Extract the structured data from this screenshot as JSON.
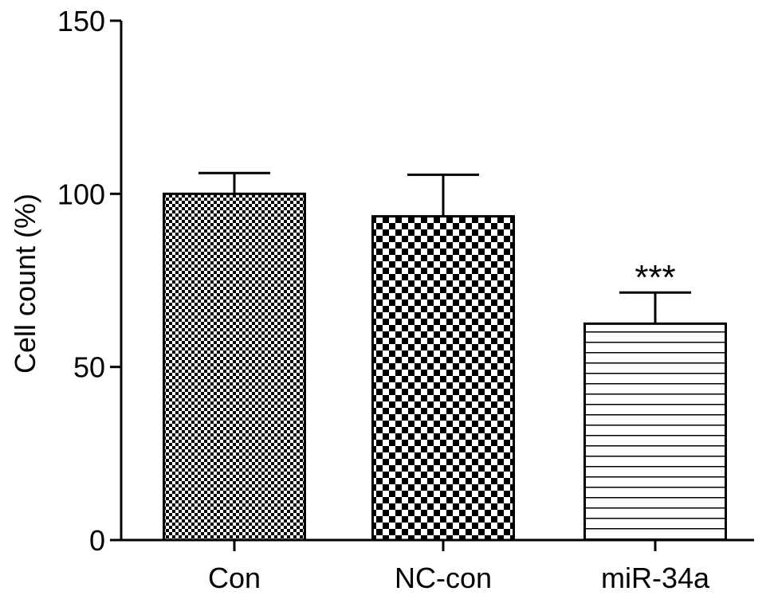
{
  "chart_data": {
    "type": "bar",
    "categories": [
      "Con",
      "NC-con",
      "miR-34a"
    ],
    "values": [
      100,
      93.5,
      62.5
    ],
    "errors": [
      6,
      12,
      9
    ],
    "patterns": [
      "fine-checker",
      "coarse-checker",
      "horizontal-lines"
    ],
    "annotations": [
      "",
      "",
      "***"
    ],
    "ylabel": "Cell count (%)",
    "xlabel": "",
    "ylim": [
      0,
      150
    ],
    "yticks": [
      "0",
      "50",
      "100",
      "150"
    ],
    "grid": false,
    "legend": "none"
  }
}
